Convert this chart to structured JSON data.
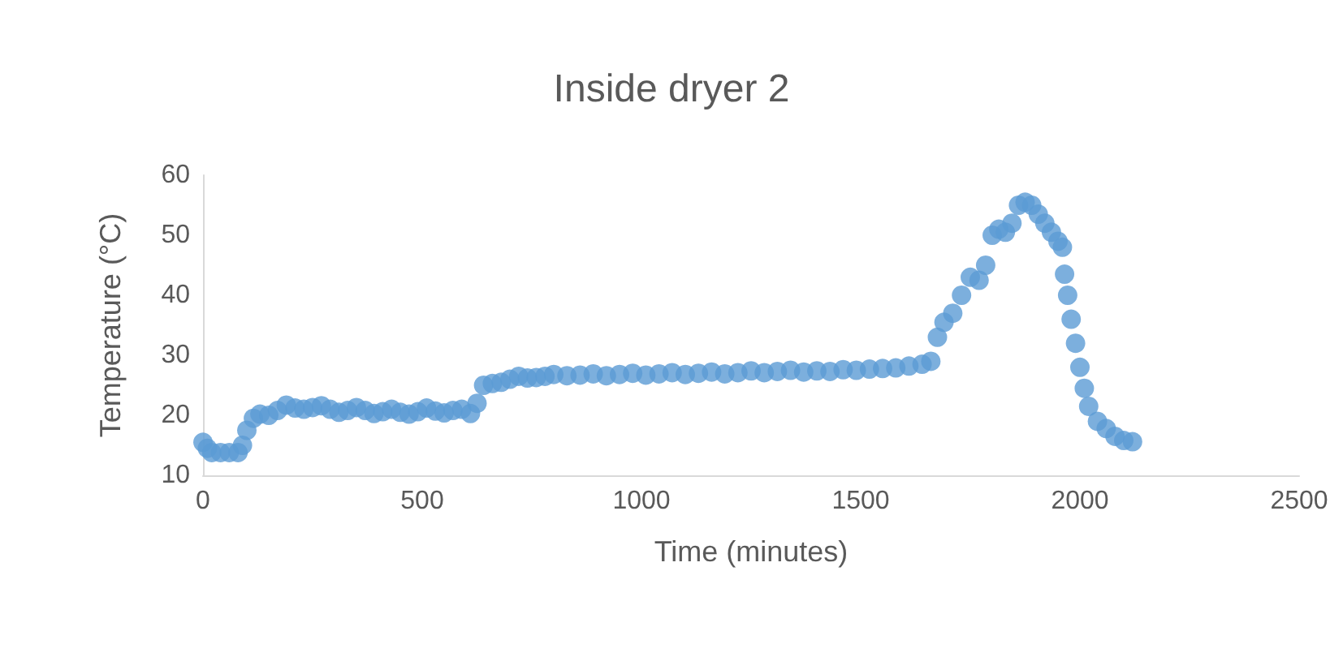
{
  "chart_data": {
    "type": "scatter",
    "title": "Inside dryer 2",
    "xlabel": "Time (minutes)",
    "ylabel": "Temperature (°C)",
    "x": [
      0,
      10,
      20,
      40,
      60,
      80,
      90,
      100,
      115,
      130,
      150,
      170,
      190,
      210,
      230,
      250,
      270,
      290,
      310,
      330,
      350,
      370,
      390,
      410,
      430,
      450,
      470,
      490,
      510,
      530,
      550,
      570,
      590,
      610,
      625,
      640,
      660,
      680,
      700,
      720,
      740,
      760,
      780,
      800,
      830,
      860,
      890,
      920,
      950,
      980,
      1010,
      1040,
      1070,
      1100,
      1130,
      1160,
      1190,
      1220,
      1250,
      1280,
      1310,
      1340,
      1370,
      1400,
      1430,
      1460,
      1490,
      1520,
      1550,
      1580,
      1610,
      1640,
      1660,
      1675,
      1690,
      1710,
      1730,
      1750,
      1770,
      1785,
      1800,
      1815,
      1830,
      1845,
      1860,
      1875,
      1890,
      1905,
      1920,
      1935,
      1950,
      1960,
      1965,
      1972,
      1980,
      1990,
      2000,
      2010,
      2020,
      2040,
      2060,
      2080,
      2100,
      2120
    ],
    "series": [
      {
        "color": "#5b9bd5",
        "values": [
          15.5,
          14.5,
          13.8,
          13.8,
          13.8,
          13.8,
          15,
          17.5,
          19.5,
          20.2,
          20,
          20.8,
          21.7,
          21.2,
          21,
          21.3,
          21.6,
          21,
          20.5,
          20.8,
          21.3,
          20.8,
          20.3,
          20.6,
          21,
          20.5,
          20.2,
          20.6,
          21.2,
          20.7,
          20.4,
          20.8,
          21,
          20.3,
          22,
          25,
          25.3,
          25.5,
          26,
          26.5,
          26.2,
          26.3,
          26.5,
          26.8,
          26.6,
          26.7,
          26.9,
          26.6,
          26.8,
          27,
          26.7,
          26.9,
          27.1,
          26.8,
          27,
          27.2,
          26.9,
          27.1,
          27.4,
          27.1,
          27.3,
          27.5,
          27.2,
          27.4,
          27.3,
          27.6,
          27.5,
          27.7,
          27.8,
          27.9,
          28.2,
          28.5,
          29,
          33,
          35.5,
          37,
          40,
          43,
          42.5,
          45,
          50,
          51,
          50.5,
          52,
          55,
          55.5,
          55,
          53.5,
          52,
          50.5,
          49,
          48,
          43.5,
          40,
          36,
          32,
          28,
          24.5,
          21.5,
          19,
          17.8,
          16.5,
          15.8,
          15.6
        ]
      }
    ],
    "xlim": [
      0,
      2500
    ],
    "xticks": [
      0,
      500,
      1000,
      1500,
      2000,
      2500
    ],
    "ylim": [
      10,
      60
    ],
    "yticks": [
      10,
      20,
      30,
      40,
      50,
      60
    ],
    "marker": "circle"
  }
}
